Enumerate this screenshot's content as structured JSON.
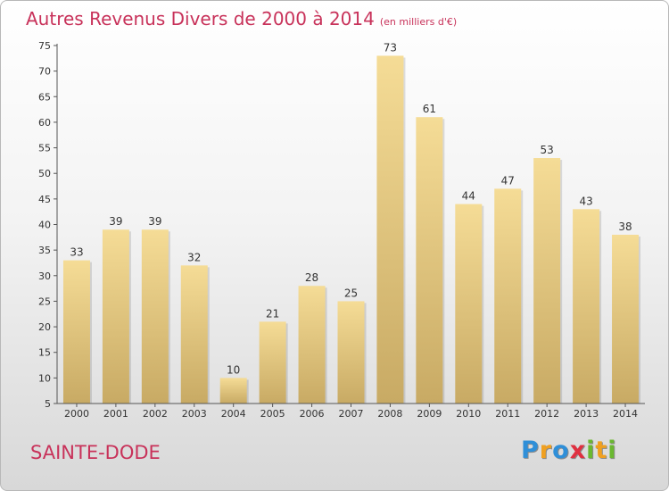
{
  "chart_data": {
    "type": "bar",
    "title": "Autres Revenus Divers de 2000 à 2014",
    "unit_note": "(en milliers d'€)",
    "categories": [
      "2000",
      "2001",
      "2002",
      "2003",
      "2004",
      "2005",
      "2006",
      "2007",
      "2008",
      "2009",
      "2010",
      "2011",
      "2012",
      "2013",
      "2014"
    ],
    "values": [
      33,
      39,
      39,
      32,
      10,
      21,
      28,
      25,
      73,
      61,
      44,
      47,
      53,
      43,
      38
    ],
    "data_labels": [
      "33",
      "39",
      "39",
      "32",
      "10",
      "21",
      "28",
      "25",
      "73",
      "61",
      "44",
      "47",
      "53",
      "43",
      "38"
    ],
    "y_ticks": [
      "5",
      "10",
      "15",
      "20",
      "25",
      "30",
      "35",
      "40",
      "45",
      "50",
      "55",
      "60",
      "65",
      "70",
      "75"
    ],
    "ylim": [
      5,
      75
    ],
    "xlabel": "",
    "ylabel": "",
    "grid": false,
    "bar_color_top": "#f5dc96",
    "bar_color_bottom": "#c8aa64"
  },
  "footer": {
    "town": "SAINTE-DODE",
    "brand_letters": [
      {
        "char": "P",
        "color": "#2f8fd8"
      },
      {
        "char": "r",
        "color": "#f0a020"
      },
      {
        "char": "o",
        "color": "#2f8fd8"
      },
      {
        "char": "x",
        "color": "#e03040"
      },
      {
        "char": "i",
        "color": "#6ab830"
      },
      {
        "char": "t",
        "color": "#f0a020"
      },
      {
        "char": "i",
        "color": "#6ab830"
      }
    ]
  },
  "colors": {
    "title": "#c8325a",
    "axis": "#333333"
  }
}
